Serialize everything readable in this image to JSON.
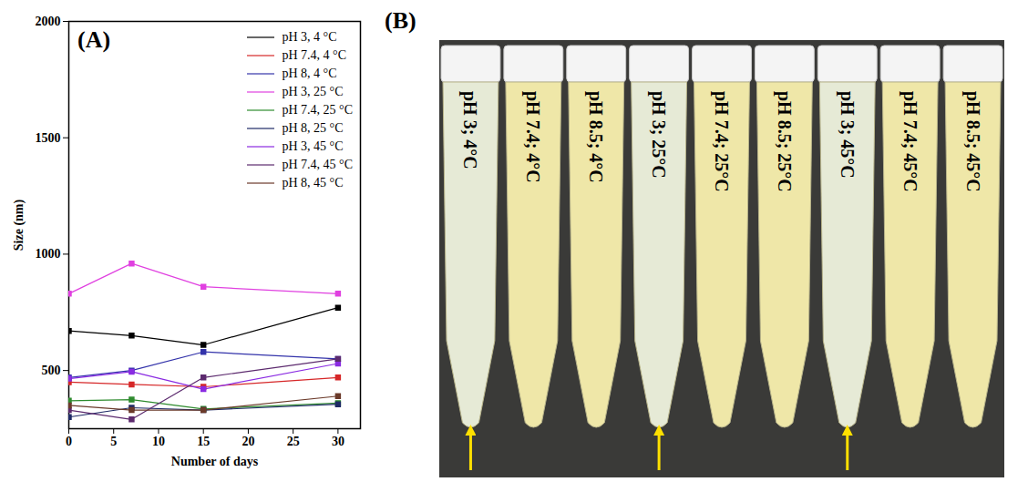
{
  "chart_data": {
    "type": "line",
    "panel": "(A)",
    "xlabel": "Number of days",
    "ylabel": "Size (nm)",
    "x": [
      0,
      7,
      15,
      30
    ],
    "xlim": [
      0,
      32.5
    ],
    "xticks": [
      0,
      5,
      10,
      15,
      20,
      25,
      30
    ],
    "ylim": [
      250,
      2000
    ],
    "yticks": [
      500,
      1000,
      1500,
      2000
    ],
    "marker": "square",
    "legend": "upper right",
    "series": [
      {
        "name": "pH 3, 4 °C",
        "color": "#000000",
        "values": [
          670,
          650,
          610,
          770
        ]
      },
      {
        "name": "pH 7.4, 4 °C",
        "color": "#d62728",
        "values": [
          450,
          440,
          430,
          470
        ]
      },
      {
        "name": "pH 8, 4 °C",
        "color": "#3333aa",
        "values": [
          470,
          500,
          580,
          550
        ]
      },
      {
        "name": "pH 3, 25 °C",
        "color": "#e040e0",
        "values": [
          830,
          960,
          860,
          830
        ]
      },
      {
        "name": "pH 7.4, 25 °C",
        "color": "#2e8b2e",
        "values": [
          370,
          375,
          335,
          360
        ]
      },
      {
        "name": "pH 8, 25 °C",
        "color": "#1f2a66",
        "values": [
          300,
          340,
          330,
          355
        ]
      },
      {
        "name": "pH 3, 45 °C",
        "color": "#8a2be2",
        "values": [
          465,
          495,
          420,
          530
        ]
      },
      {
        "name": "pH 7.4, 45 °C",
        "color": "#5c2a6e",
        "values": [
          330,
          290,
          470,
          550
        ]
      },
      {
        "name": "pH 8, 45 °C",
        "color": "#6b3a2a",
        "values": [
          350,
          330,
          330,
          390
        ]
      }
    ]
  },
  "photo": {
    "panel": "(B)",
    "tubes": [
      {
        "label": "pH 3; 4°C",
        "arrow": true
      },
      {
        "label": "pH 7.4; 4°C",
        "arrow": false
      },
      {
        "label": "pH 8.5; 4°C",
        "arrow": false
      },
      {
        "label": "pH 3; 25°C",
        "arrow": true
      },
      {
        "label": "pH 7.4; 25°C",
        "arrow": false
      },
      {
        "label": "pH 8.5; 25°C",
        "arrow": false
      },
      {
        "label": "pH 3; 45°C",
        "arrow": true
      },
      {
        "label": "pH 7.4; 45°C",
        "arrow": false
      },
      {
        "label": "pH 8.5; 45°C",
        "arrow": false
      }
    ]
  }
}
